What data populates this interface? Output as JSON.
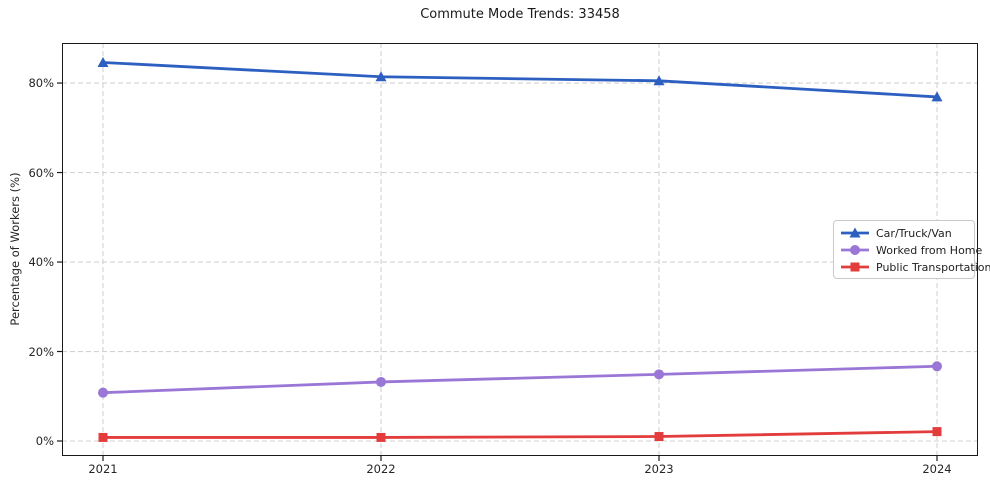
{
  "title": "Commute Mode Trends: 33458",
  "chart_data": {
    "type": "line",
    "categories": [
      "2021",
      "2022",
      "2023",
      "2024"
    ],
    "series": [
      {
        "name": "Car/Truck/Van",
        "marker": "triangle",
        "color": "#2d5fc1",
        "values": [
          84.6,
          81.4,
          80.5,
          76.9
        ]
      },
      {
        "name": "Worked from Home",
        "marker": "circle",
        "color": "#9a76d6",
        "values": [
          10.8,
          13.2,
          14.9,
          16.7
        ]
      },
      {
        "name": "Public Transportation",
        "marker": "square",
        "color": "#e23c3c",
        "values": [
          0.8,
          0.8,
          1.0,
          2.1
        ]
      }
    ],
    "ylabel": "Percentage of Workers (%)",
    "xlabel": "",
    "yticks": [
      0,
      20,
      40,
      60,
      80
    ],
    "ytick_labels": [
      "0%",
      "20%",
      "40%",
      "60%",
      "80%"
    ],
    "ylim": [
      -3.35,
      88.95
    ],
    "grid": true,
    "grid_style": "dashed",
    "legend_position": "center-right"
  },
  "style": {
    "grid_color": "#d2d2d2",
    "spine_color": "#1a1a1a",
    "text_color": "#262626",
    "background": "#ffffff"
  }
}
